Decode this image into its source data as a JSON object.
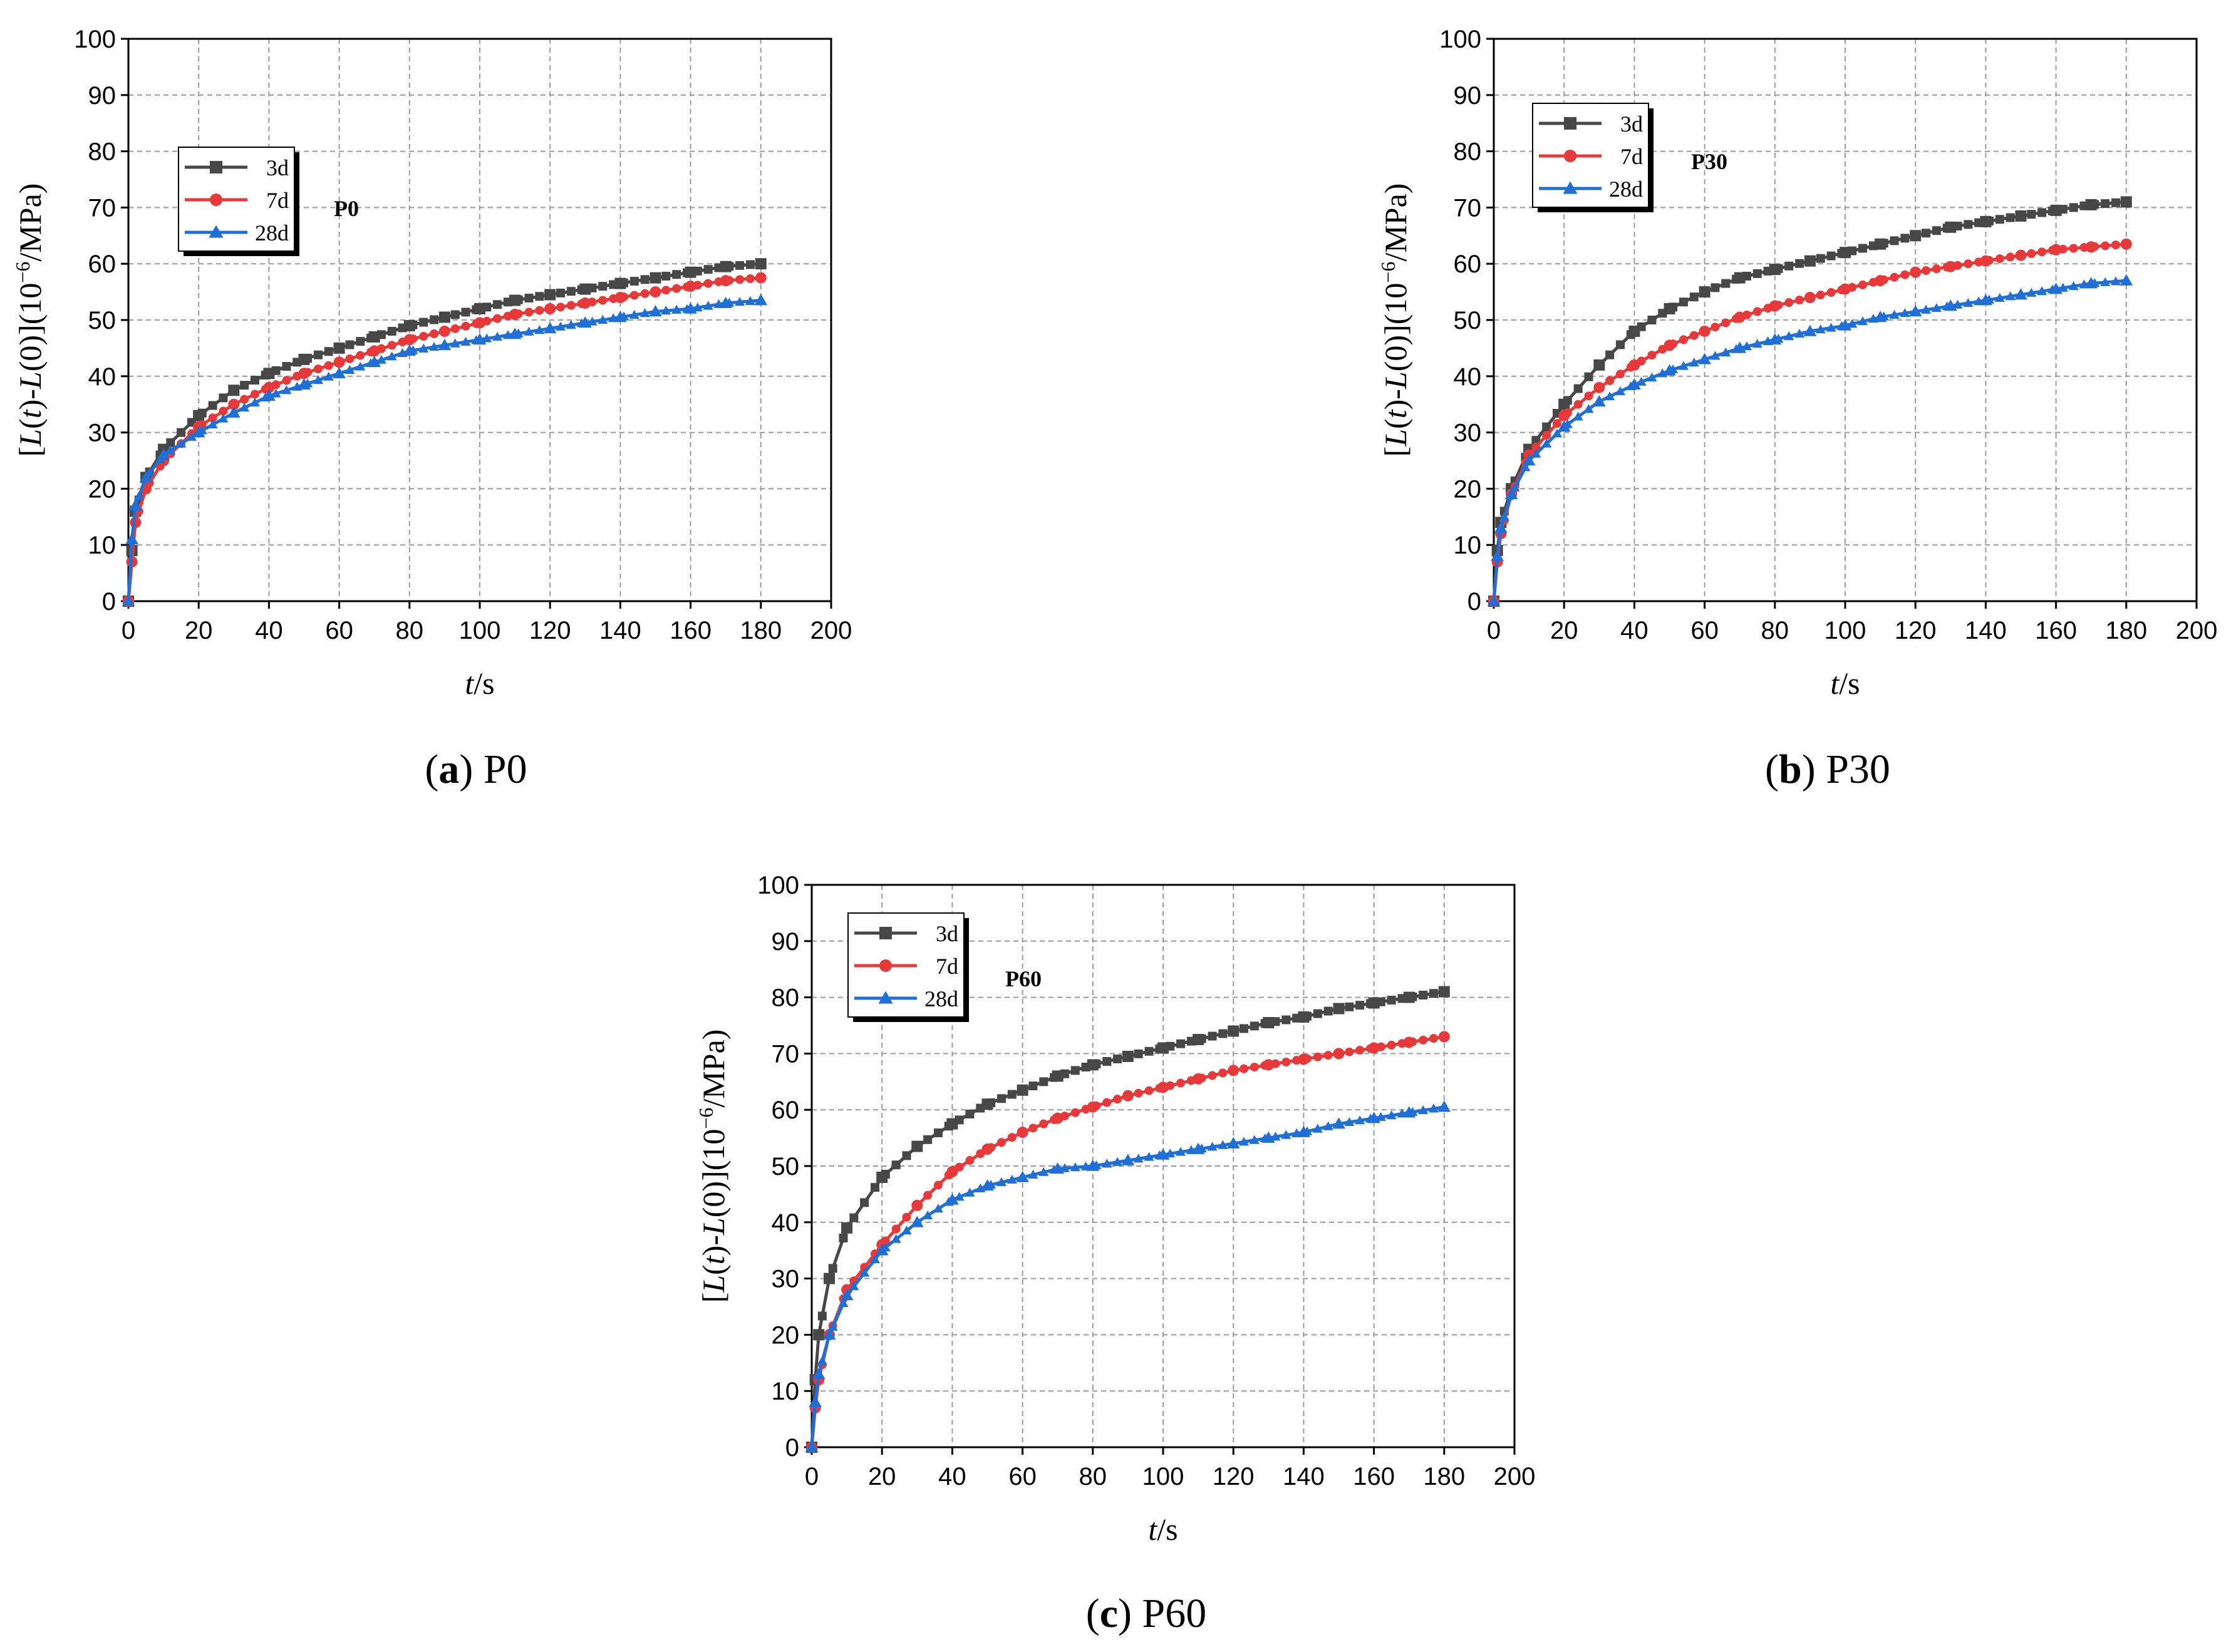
{
  "figure": {
    "captions": [
      {
        "letter": "(a)",
        "name": "P0"
      },
      {
        "letter": "(b)",
        "name": "P30"
      },
      {
        "letter": "(c)",
        "name": "P60"
      }
    ]
  },
  "series_styles": [
    {
      "name": "3d",
      "color": "#474747",
      "marker": "square"
    },
    {
      "name": "7d",
      "color": "#e8393a",
      "marker": "circle"
    },
    {
      "name": "28d",
      "color": "#1f6fd6",
      "marker": "triangle"
    }
  ],
  "chart_data": [
    {
      "type": "line",
      "panel_tag": "P0",
      "title": "",
      "xlabel": "t/s",
      "ylabel": "[L(t)-L(0)](10^-6/MPa)",
      "xlim": [
        0,
        200
      ],
      "ylim": [
        0,
        100
      ],
      "xticks": [
        0,
        20,
        40,
        60,
        80,
        100,
        120,
        140,
        160,
        180,
        200
      ],
      "yticks": [
        0,
        10,
        20,
        30,
        40,
        50,
        60,
        70,
        80,
        90,
        100
      ],
      "grid": true,
      "legend_position": "upper-left",
      "x": [
        0,
        1,
        2,
        5,
        10,
        20,
        30,
        40,
        50,
        60,
        70,
        80,
        90,
        100,
        110,
        120,
        130,
        140,
        150,
        160,
        170,
        180
      ],
      "series": [
        {
          "name": "3d",
          "values": [
            0,
            9,
            16,
            22,
            27,
            33,
            37.5,
            40.5,
            43,
            45,
            47,
            49,
            50.5,
            52,
            53.5,
            54.5,
            55.5,
            56.5,
            57.5,
            58.5,
            59.5,
            60
          ]
        },
        {
          "name": "7d",
          "values": [
            0,
            7,
            14,
            20,
            25,
            31,
            35,
            38,
            40.5,
            42.5,
            44.5,
            46.5,
            48,
            49.5,
            51,
            52,
            53,
            54,
            55,
            56,
            57,
            57.5
          ]
        },
        {
          "name": "28d",
          "values": [
            0,
            11,
            17,
            22,
            26,
            30,
            33.5,
            36.5,
            38.5,
            40.5,
            42.5,
            44.5,
            45.5,
            46.5,
            47.5,
            48.5,
            49.5,
            50.5,
            51.5,
            52,
            53,
            53.5
          ]
        }
      ]
    },
    {
      "type": "line",
      "panel_tag": "P30",
      "title": "",
      "xlabel": "t/s",
      "ylabel": "[L(t)-L(0)](10^-6/MPa)",
      "xlim": [
        0,
        200
      ],
      "ylim": [
        0,
        100
      ],
      "xticks": [
        0,
        20,
        40,
        60,
        80,
        100,
        120,
        140,
        160,
        180,
        200
      ],
      "yticks": [
        0,
        10,
        20,
        30,
        40,
        50,
        60,
        70,
        80,
        90,
        100
      ],
      "grid": true,
      "legend_position": "upper-left",
      "x": [
        0,
        1,
        2,
        5,
        10,
        20,
        30,
        40,
        50,
        60,
        70,
        80,
        90,
        100,
        110,
        120,
        130,
        140,
        150,
        160,
        170,
        180
      ],
      "series": [
        {
          "name": "3d",
          "values": [
            0,
            9,
            14,
            20,
            27,
            35,
            42,
            48,
            52,
            55,
            57.5,
            59,
            60.5,
            62,
            63.5,
            65,
            66.5,
            67.5,
            68.5,
            69.5,
            70.5,
            71
          ]
        },
        {
          "name": "7d",
          "values": [
            0,
            7,
            12,
            19,
            26,
            33,
            38,
            42,
            45.5,
            48,
            50.5,
            52.5,
            54,
            55.5,
            57,
            58.5,
            59.5,
            60.5,
            61.5,
            62.5,
            63,
            63.5
          ]
        },
        {
          "name": "28d",
          "values": [
            0,
            8,
            13,
            19,
            25,
            31,
            35.5,
            38.5,
            41,
            43,
            45,
            46.5,
            48,
            49,
            50.5,
            51.5,
            52.5,
            53.5,
            54.5,
            55.5,
            56.5,
            57
          ]
        }
      ]
    },
    {
      "type": "line",
      "panel_tag": "P60",
      "title": "",
      "xlabel": "t/s",
      "ylabel": "[L(t)-L(0)](10^-6/MPa)",
      "xlim": [
        0,
        200
      ],
      "ylim": [
        0,
        100
      ],
      "xticks": [
        0,
        20,
        40,
        60,
        80,
        100,
        120,
        140,
        160,
        180,
        200
      ],
      "yticks": [
        0,
        10,
        20,
        30,
        40,
        50,
        60,
        70,
        80,
        90,
        100
      ],
      "grid": true,
      "legend_position": "upper-left",
      "x": [
        0,
        1,
        2,
        5,
        10,
        20,
        30,
        40,
        50,
        60,
        70,
        80,
        90,
        100,
        110,
        120,
        130,
        140,
        150,
        160,
        170,
        180
      ],
      "series": [
        {
          "name": "3d",
          "values": [
            0,
            12,
            20,
            30,
            39,
            48,
            53.5,
            57.5,
            61,
            63.5,
            66,
            68,
            69.5,
            71,
            72.5,
            74,
            75.5,
            76.5,
            78,
            79,
            80,
            81
          ]
        },
        {
          "name": "7d",
          "values": [
            0,
            7,
            12,
            20,
            28,
            36,
            43,
            49,
            53,
            56,
            58.5,
            60.5,
            62.5,
            64,
            65.5,
            67,
            68,
            69,
            70,
            71,
            72,
            73
          ]
        },
        {
          "name": "28d",
          "values": [
            0,
            8,
            13,
            20,
            27,
            35,
            40,
            44,
            46.5,
            48,
            49.5,
            50,
            51,
            52,
            53,
            54,
            55,
            56,
            57.5,
            58.5,
            59.5,
            60.5
          ]
        }
      ]
    }
  ]
}
